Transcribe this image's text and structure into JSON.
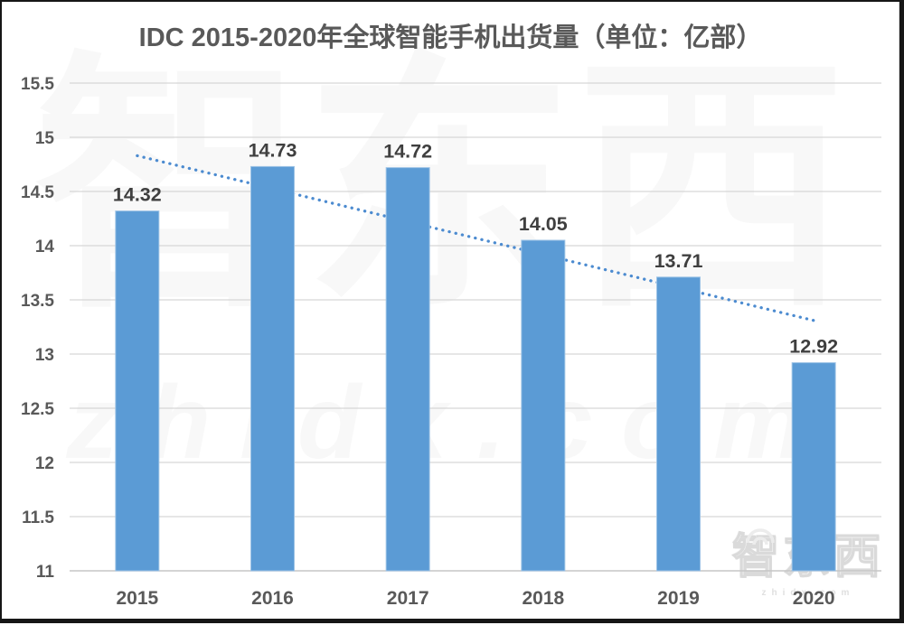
{
  "chart_data": {
    "type": "bar",
    "title": "IDC 2015-2020年全球智能手机出货量（单位：亿部）",
    "categories": [
      "2015",
      "2016",
      "2017",
      "2018",
      "2019",
      "2020"
    ],
    "values": [
      14.32,
      14.73,
      14.72,
      14.05,
      13.71,
      12.92
    ],
    "value_labels": [
      "14.32",
      "14.73",
      "14.72",
      "14.05",
      "13.71",
      "12.92"
    ],
    "xlabel": "",
    "ylabel": "",
    "ylim": [
      11,
      15.5
    ],
    "ytick_step": 0.5,
    "ytick_labels": [
      "11",
      "11.5",
      "12",
      "12.5",
      "13",
      "13.5",
      "14",
      "14.5",
      "15",
      "15.5"
    ],
    "grid": true,
    "legend_position": "none",
    "bar_color": "#5B9BD5",
    "bar_edge_color": "#9DC3E6",
    "gridline_color": "#D6D6D6",
    "axis_line_color": "#C6C6C6",
    "value_label_color": "#3F3F3F",
    "tick_label_color": "#595959",
    "title_color": "#595959",
    "trendline": {
      "style": "dotted",
      "color": "#4C8BD0",
      "start_value": 14.83,
      "end_value": 13.31
    }
  },
  "watermark": {
    "brand_cjk": "智东西",
    "brand_url": "zhidx.com"
  }
}
